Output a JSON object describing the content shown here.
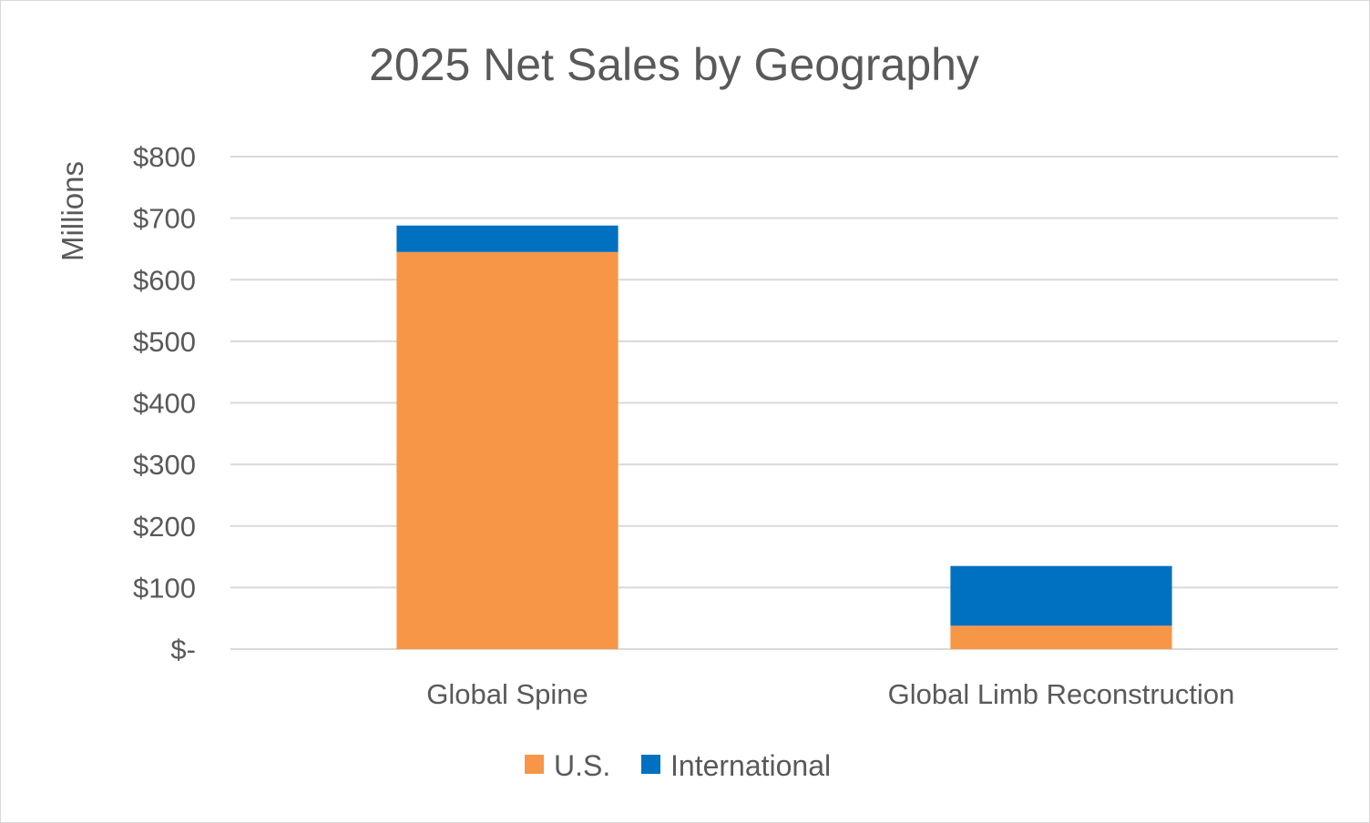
{
  "chart_data": {
    "type": "bar",
    "stacked": true,
    "title": "2025 Net Sales by Geography",
    "ylabel": "Millions",
    "xlabel": "",
    "ylim": [
      0,
      800
    ],
    "yticks": [
      0,
      100,
      200,
      300,
      400,
      500,
      600,
      700,
      800
    ],
    "ytick_labels": [
      "$-",
      "$100",
      "$200",
      "$300",
      "$400",
      "$500",
      "$600",
      "$700",
      "$800"
    ],
    "categories": [
      "Global Spine",
      "Global Limb Reconstruction"
    ],
    "series": [
      {
        "name": "U.S.",
        "color": "#f79646",
        "values": [
          645,
          38
        ]
      },
      {
        "name": "International",
        "color": "#0070c0",
        "values": [
          43,
          97
        ]
      }
    ],
    "grid": true,
    "legend_position": "bottom"
  }
}
